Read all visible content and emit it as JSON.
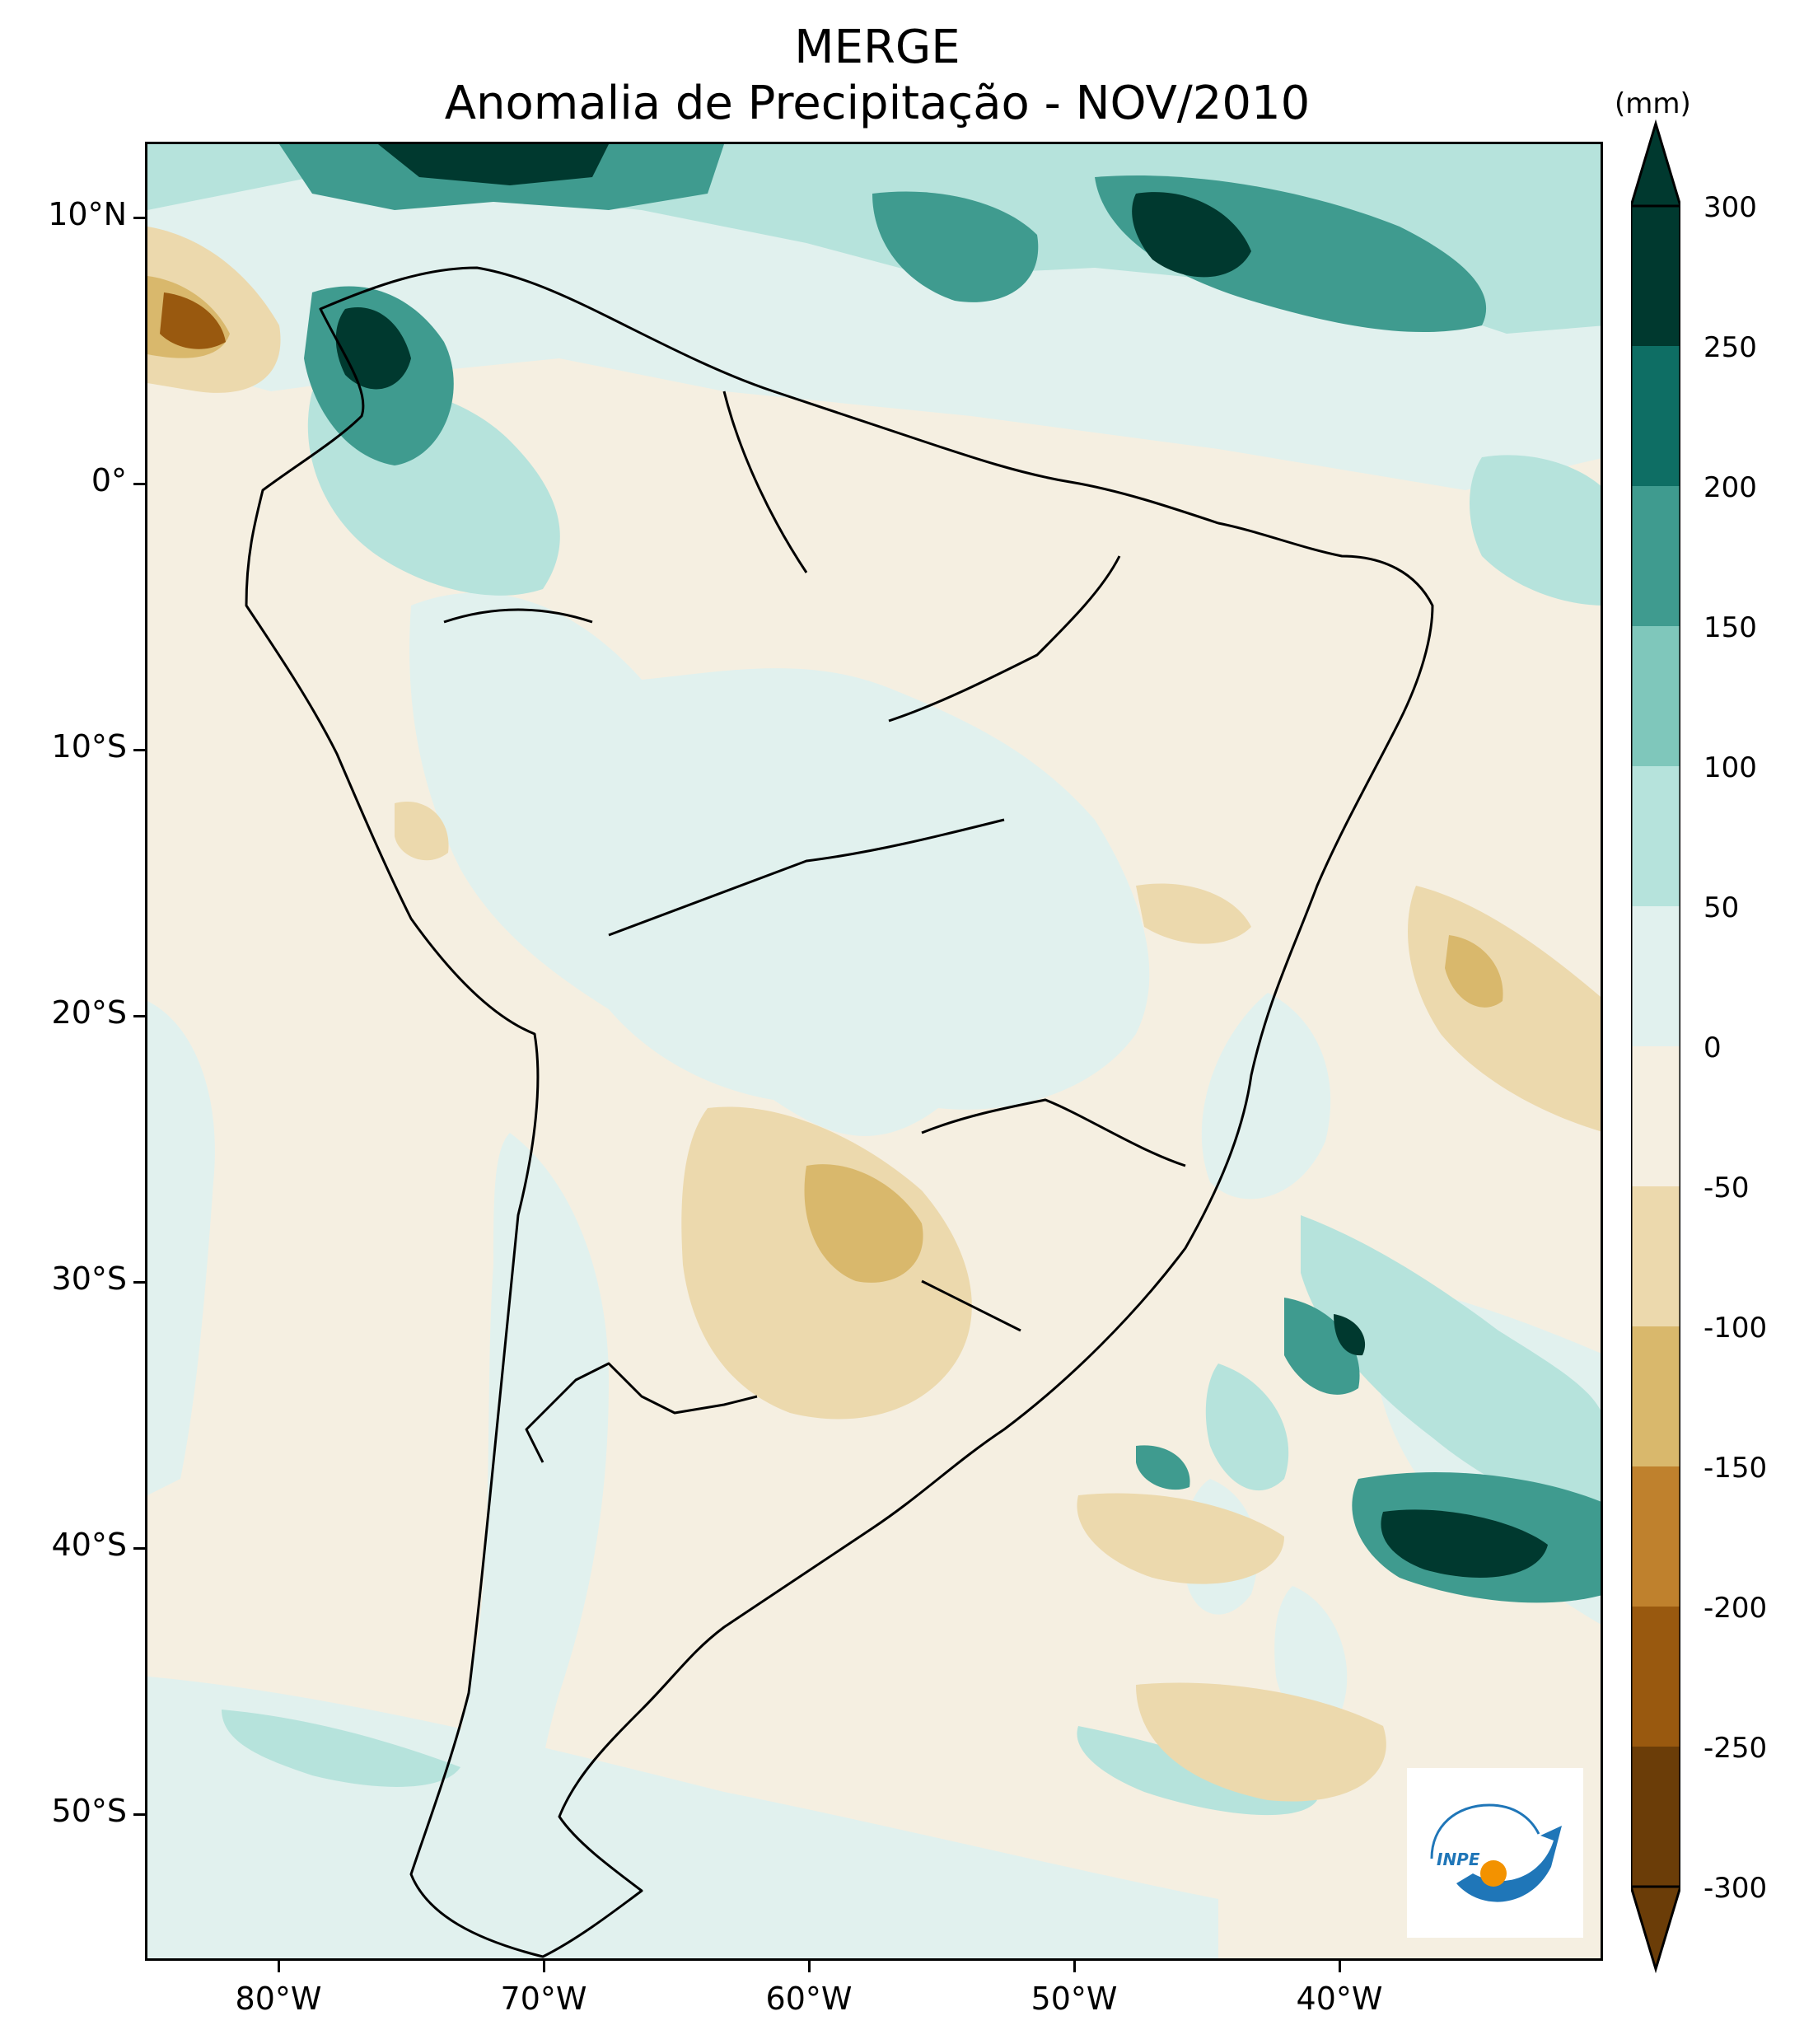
{
  "title": {
    "line1": "MERGE",
    "line2": "Anomalia de Precipitação - NOV/2010"
  },
  "map": {
    "lat_labels": [
      "10°N",
      "0°",
      "10°S",
      "20°S",
      "30°S",
      "40°S",
      "50°S"
    ],
    "lon_labels": [
      "80°W",
      "70°W",
      "60°W",
      "50°W",
      "40°W"
    ],
    "extent": {
      "lon": [
        -85,
        -30
      ],
      "lat": [
        -56,
        13
      ]
    }
  },
  "colorbar": {
    "unit": "(mm)",
    "levels": [
      "300",
      "250",
      "200",
      "150",
      "100",
      "50",
      "0",
      "-50",
      "-100",
      "-150",
      "-200",
      "-250",
      "-300"
    ],
    "colors": [
      "#00392f",
      "#0e6e64",
      "#3f9b8f",
      "#7fc7bb",
      "#b6e3dc",
      "#e1f1ee",
      "#f5efe1",
      "#ecd9ad",
      "#d9b86c",
      "#bf812d",
      "#99590f",
      "#6b3d08"
    ],
    "extend": "both"
  },
  "logo": {
    "text": "INPE",
    "colors": {
      "primary": "#1f76b8",
      "accent": "#f39200"
    }
  }
}
